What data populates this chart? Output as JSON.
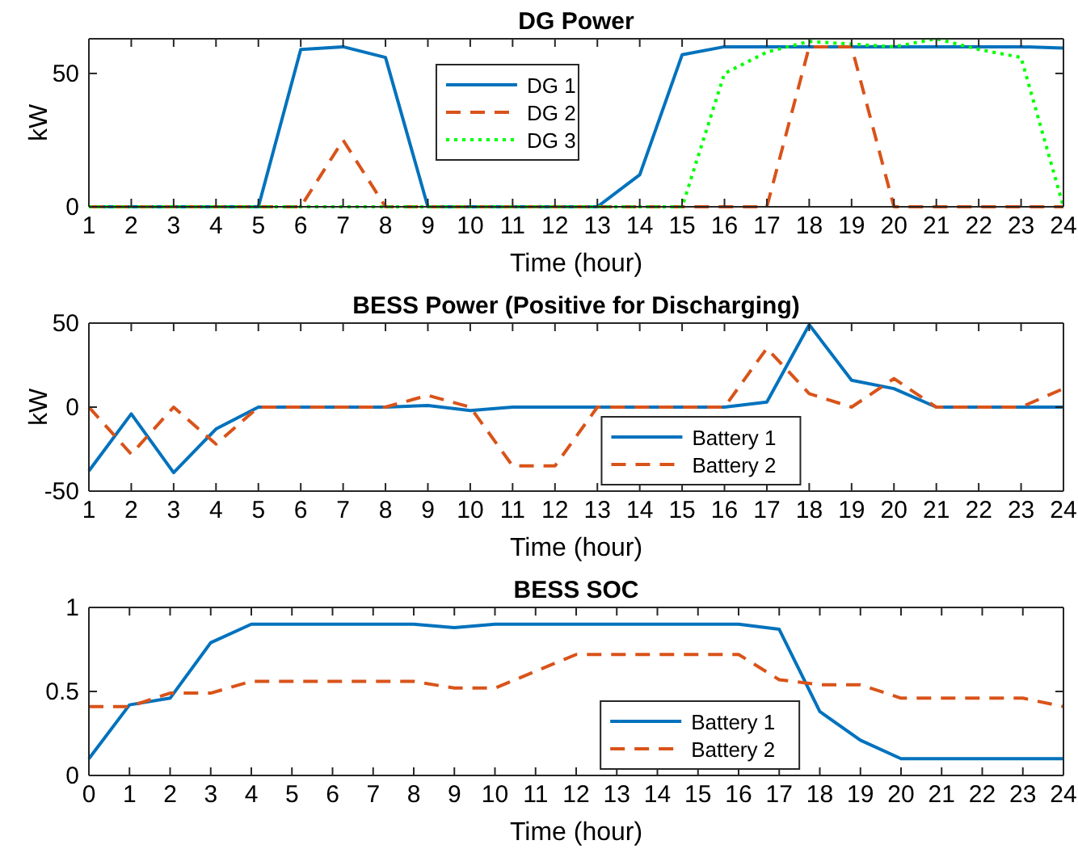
{
  "chart_data": [
    {
      "type": "line",
      "title": "DG Power",
      "xlabel": "Time (hour)",
      "ylabel": "kW",
      "x": [
        1,
        2,
        3,
        4,
        5,
        6,
        7,
        8,
        9,
        10,
        11,
        12,
        13,
        14,
        15,
        16,
        17,
        18,
        19,
        20,
        21,
        22,
        23,
        24
      ],
      "xlim": [
        1,
        24
      ],
      "xticks": [
        1,
        2,
        3,
        4,
        5,
        6,
        7,
        8,
        9,
        10,
        11,
        12,
        13,
        14,
        15,
        16,
        17,
        18,
        19,
        20,
        21,
        22,
        23,
        24
      ],
      "ylim": [
        0,
        63
      ],
      "yticks": [
        0,
        50
      ],
      "legend": "top",
      "grid": false,
      "series": [
        {
          "name": "DG 1",
          "color": "#0072bd",
          "line_style": "solid",
          "values": [
            0,
            0,
            0,
            0,
            0,
            59,
            60,
            56,
            0,
            0,
            0,
            0,
            0,
            12,
            57,
            60,
            60,
            60,
            60,
            60,
            60,
            60,
            60,
            59.5
          ]
        },
        {
          "name": "DG 2",
          "color": "#d95319",
          "line_style": "dashed",
          "values": [
            0,
            0,
            0,
            0,
            0,
            0,
            25,
            0,
            0,
            0,
            0,
            0,
            0,
            0,
            0,
            0,
            0,
            60,
            60,
            0,
            0,
            0,
            0,
            0
          ]
        },
        {
          "name": "DG 3",
          "color": "#00ff00",
          "line_style": "dotted",
          "values": [
            0,
            0,
            0,
            0,
            0,
            0,
            0,
            0,
            0,
            0,
            0,
            0,
            0,
            0,
            0,
            50,
            58,
            62,
            61,
            60,
            63,
            59,
            56,
            0
          ]
        }
      ]
    },
    {
      "type": "line",
      "title": "BESS Power (Positive for Discharging)",
      "xlabel": "Time (hour)",
      "ylabel": "kW",
      "x": [
        1,
        2,
        3,
        4,
        5,
        6,
        7,
        8,
        9,
        10,
        11,
        12,
        13,
        14,
        15,
        16,
        17,
        18,
        19,
        20,
        21,
        22,
        23,
        24
      ],
      "xlim": [
        1,
        24
      ],
      "xticks": [
        1,
        2,
        3,
        4,
        5,
        6,
        7,
        8,
        9,
        10,
        11,
        12,
        13,
        14,
        15,
        16,
        17,
        18,
        19,
        20,
        21,
        22,
        23,
        24
      ],
      "ylim": [
        -50,
        50
      ],
      "yticks": [
        -50,
        0,
        50
      ],
      "legend": "bottom",
      "grid": false,
      "series": [
        {
          "name": "Battery 1",
          "color": "#0072bd",
          "line_style": "solid",
          "values": [
            -38,
            -4,
            -39,
            -13,
            0,
            0,
            0,
            0,
            1,
            -2,
            0,
            0,
            0,
            0,
            0,
            0,
            3,
            49,
            16,
            11,
            0,
            0,
            0,
            0
          ]
        },
        {
          "name": "Battery 2",
          "color": "#d95319",
          "line_style": "dashed",
          "values": [
            0,
            -28,
            0,
            -22,
            0,
            0,
            0,
            0,
            7,
            0,
            -35,
            -35,
            0,
            0,
            0,
            0,
            35,
            8,
            0,
            17,
            0,
            0,
            0,
            11
          ]
        }
      ]
    },
    {
      "type": "line",
      "title": "BESS SOC",
      "xlabel": "Time (hour)",
      "x": [
        0,
        1,
        2,
        3,
        4,
        5,
        6,
        7,
        8,
        9,
        10,
        11,
        12,
        13,
        14,
        15,
        16,
        17,
        18,
        19,
        20,
        21,
        22,
        23,
        24
      ],
      "xlim": [
        0,
        24
      ],
      "xticks": [
        0,
        1,
        2,
        3,
        4,
        5,
        6,
        7,
        8,
        9,
        10,
        11,
        12,
        13,
        14,
        15,
        16,
        17,
        18,
        19,
        20,
        21,
        22,
        23,
        24
      ],
      "ylim": [
        0,
        1
      ],
      "yticks": [
        0,
        0.5,
        1
      ],
      "legend": "bottom right",
      "grid": false,
      "series": [
        {
          "name": "Battery 1",
          "color": "#0072bd",
          "line_style": "solid",
          "values": [
            0.1,
            0.42,
            0.46,
            0.79,
            0.9,
            0.9,
            0.9,
            0.9,
            0.9,
            0.88,
            0.9,
            0.9,
            0.9,
            0.9,
            0.9,
            0.9,
            0.9,
            0.87,
            0.38,
            0.21,
            0.1,
            0.1,
            0.1,
            0.1,
            0.1
          ]
        },
        {
          "name": "Battery 2",
          "color": "#d95319",
          "line_style": "dashed",
          "values": [
            0.41,
            0.41,
            0.49,
            0.49,
            0.56,
            0.56,
            0.56,
            0.56,
            0.56,
            0.52,
            0.52,
            0.62,
            0.72,
            0.72,
            0.72,
            0.72,
            0.72,
            0.57,
            0.54,
            0.54,
            0.46,
            0.46,
            0.46,
            0.46,
            0.41
          ]
        }
      ]
    }
  ]
}
